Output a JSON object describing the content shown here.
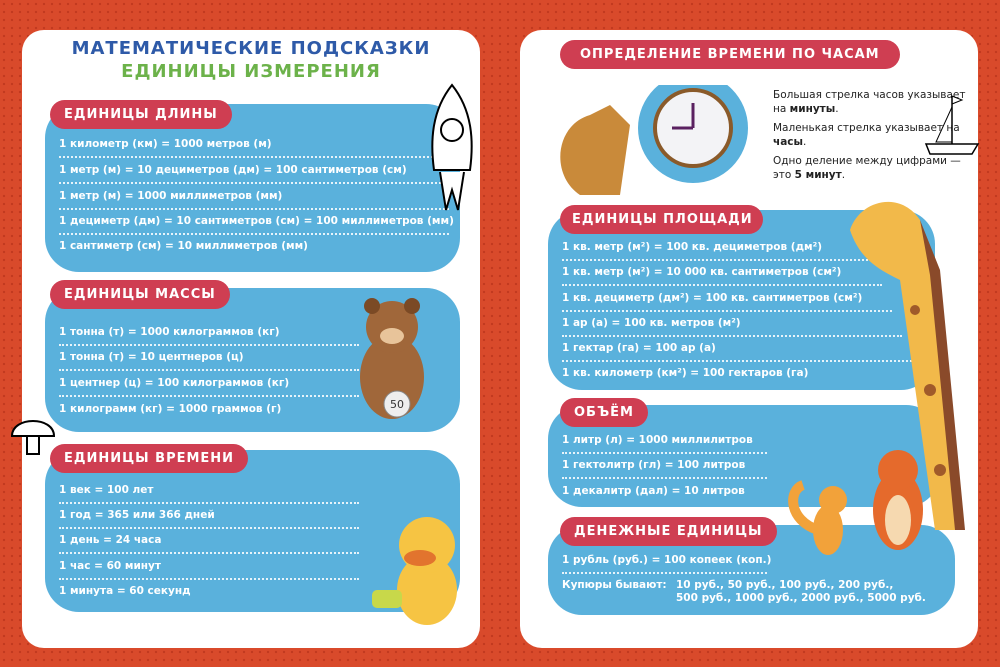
{
  "left": {
    "title": "МАТЕМАТИЧЕСКИЕ ПОДСКАЗКИ",
    "subtitle": "ЕДИНИЦЫ ИЗМЕРЕНИЯ",
    "length": {
      "label": "ЕДИНИЦЫ ДЛИНЫ",
      "rows": [
        "1 километр (км) = 1000 метров (м)",
        "1 метр (м) = 10 дециметров (дм) = 100 сантиметров (см)",
        "1 метр (м) = 1000 миллиметров (мм)",
        "1 дециметр (дм) = 10 сантиметров (см) = 100 миллиметров (мм)",
        "1 сантиметр (см) = 10 миллиметров (мм)"
      ]
    },
    "mass": {
      "label": "ЕДИНИЦЫ МАССЫ",
      "rows": [
        "1 тонна (т) = 1000 килограммов (кг)",
        "1 тонна (т) = 10 центнеров (ц)",
        "1 центнер (ц) = 100 килограммов (кг)",
        "1 килограмм (кг) = 1000 граммов (г)"
      ],
      "weight_label": "50"
    },
    "time": {
      "label": "ЕДИНИЦЫ ВРЕМЕНИ",
      "rows": [
        "1 век = 100 лет",
        "1 год = 365 или 366 дней",
        "1 день = 24 часа",
        "1 час = 60 минут",
        "1 минута = 60 секунд"
      ]
    }
  },
  "right": {
    "clock": {
      "label": "ОПРЕДЕЛЕНИЕ ВРЕМЕНИ ПО ЧАСАМ",
      "p1a": "Большая стрелка часов указывает на ",
      "p1b": "минуты",
      "p2a": "Маленькая стрелка указывает на ",
      "p2b": "часы",
      "p3a": "Одно деление между цифрами — это ",
      "p3b": "5 минут"
    },
    "area": {
      "label": "ЕДИНИЦЫ ПЛОЩАДИ",
      "rows": [
        "1 кв. метр (м²) = 100 кв. дециметров (дм²)",
        "1 кв. метр (м²) = 10 000 кв. сантиметров (см²)",
        "1 кв. дециметр (дм²) = 100 кв. сантиметров (см²)",
        "1 ар (а) = 100 кв. метров (м²)",
        "1 гектар (га) = 100 ар (а)",
        "1 кв. километр (км²) = 100 гектаров (га)"
      ]
    },
    "volume": {
      "label": "ОБЪЁМ",
      "rows": [
        "1 литр (л) = 1000 миллилитров",
        "1 гектолитр (гл) = 100 литров",
        "1 декалитр (дал) = 10 литров"
      ]
    },
    "money": {
      "label": "ДЕНЕЖНЫЕ ЕДИНИЦЫ",
      "rows": [
        "1 рубль (руб.) = 100 копеек (коп.)"
      ],
      "notes_label": "Купюры бывают:",
      "notes_line1": "10 руб., 50 руб., 100 руб., 200 руб.,",
      "notes_line2": "500 руб., 1000 руб., 2000 руб., 5000 руб."
    }
  },
  "colors": {
    "background": "#d94a2b",
    "panel": "#5ab1dc",
    "label": "#cf3e52",
    "title": "#2e5aa8",
    "subtitle": "#6cb24a"
  }
}
